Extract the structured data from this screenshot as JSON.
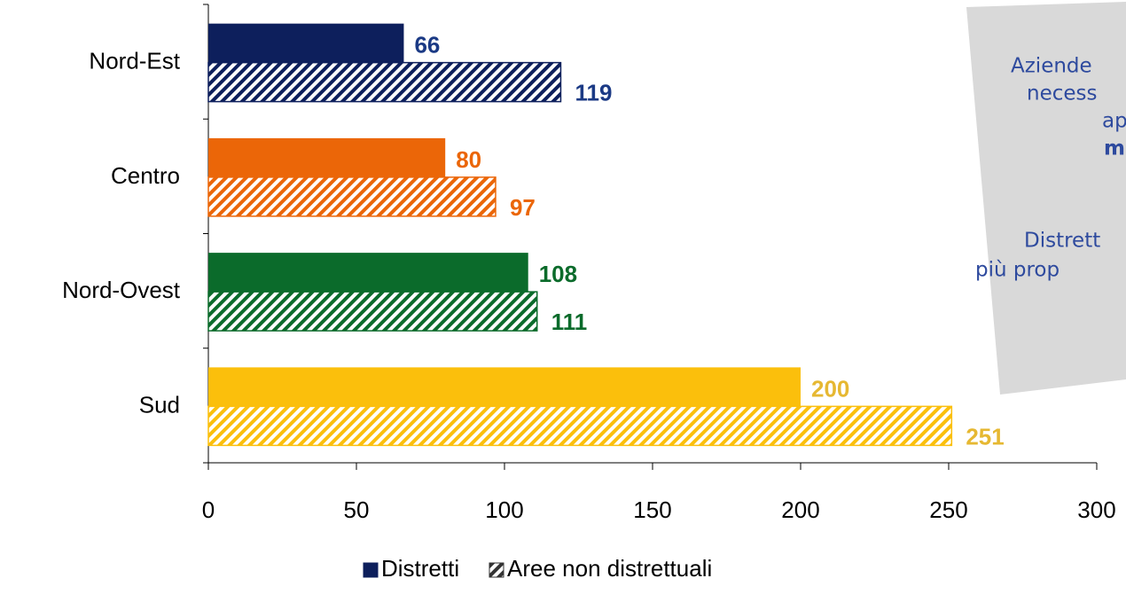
{
  "chart_data": {
    "type": "hbar",
    "categories": [
      "Nord-Est",
      "Centro",
      "Nord-Ovest",
      "Sud"
    ],
    "colors": [
      "#0d1f5c",
      "#eb6608",
      "#0b6b2b",
      "#fbbf0c"
    ],
    "label_colors": [
      "#1b3a85",
      "#eb6608",
      "#0b6b2b",
      "#e6b832"
    ],
    "series": [
      {
        "name": "Distretti",
        "color": "#0d1f5c",
        "hatch": false,
        "values": [
          66,
          80,
          108,
          200
        ]
      },
      {
        "name": "Aree non distrettuali",
        "color": "#333333",
        "hatch": true,
        "values": [
          119,
          97,
          111,
          251
        ]
      }
    ],
    "xlim": [
      0,
      300
    ],
    "xticks": [
      0,
      50,
      100,
      150,
      200,
      250,
      300
    ],
    "legend": "bottom",
    "annotations": [
      "Aziende",
      "necess",
      "ap",
      "mac",
      "Distrett",
      "più prop"
    ]
  }
}
